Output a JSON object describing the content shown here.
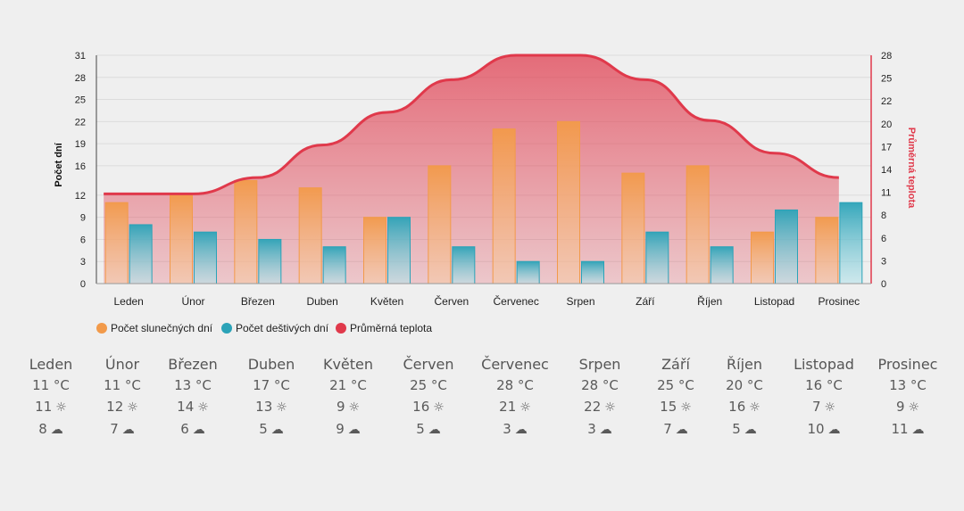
{
  "chart_data": {
    "type": "bar",
    "categories": [
      "Leden",
      "Únor",
      "Březen",
      "Duben",
      "Květen",
      "Červen",
      "Červenec",
      "Srpen",
      "Září",
      "Říjen",
      "Listopad",
      "Prosinec"
    ],
    "series": [
      {
        "name": "Počet slunečných dní",
        "type": "bar",
        "axis": "left",
        "values": [
          11,
          12,
          14,
          13,
          9,
          16,
          21,
          22,
          15,
          16,
          7,
          9
        ]
      },
      {
        "name": "Počet deštivých dní",
        "type": "bar",
        "axis": "left",
        "values": [
          8,
          7,
          6,
          5,
          9,
          5,
          3,
          3,
          7,
          5,
          10,
          11
        ]
      },
      {
        "name": "Průměrná teplota",
        "type": "area",
        "axis": "right",
        "values": [
          11,
          11,
          13,
          17,
          21,
          25,
          28,
          28,
          25,
          20,
          16,
          13
        ]
      }
    ],
    "ylabel": "Počet dní",
    "y2label": "Průměrná teplota",
    "yticks": [
      0,
      3,
      6,
      9,
      12,
      16,
      19,
      22,
      25,
      28,
      31
    ],
    "y2ticks": [
      0,
      3,
      6,
      8,
      11,
      14,
      17,
      20,
      22,
      25,
      28
    ],
    "ylim": [
      0,
      31
    ],
    "y2lim": [
      0,
      28
    ],
    "legend_position": "bottom-left",
    "colors": {
      "sunny": "#f29a4a",
      "rainy": "#2ba3b8",
      "temp": "#e0394b"
    }
  },
  "table": {
    "temp_unit": "°C",
    "sun_icon": "sun-icon",
    "rain_icon": "cloud-rain-icon",
    "rows": [
      {
        "month": "Leden",
        "temp": "11 °C",
        "sun": "11",
        "rain": "8"
      },
      {
        "month": "Únor",
        "temp": "11 °C",
        "sun": "12",
        "rain": "7"
      },
      {
        "month": "Březen",
        "temp": "13 °C",
        "sun": "14",
        "rain": "6"
      },
      {
        "month": "Duben",
        "temp": "17 °C",
        "sun": "13",
        "rain": "5"
      },
      {
        "month": "Květen",
        "temp": "21 °C",
        "sun": "9",
        "rain": "9"
      },
      {
        "month": "Červen",
        "temp": "25 °C",
        "sun": "16",
        "rain": "5"
      },
      {
        "month": "Červenec",
        "temp": "28 °C",
        "sun": "21",
        "rain": "3"
      },
      {
        "month": "Srpen",
        "temp": "28 °C",
        "sun": "22",
        "rain": "3"
      },
      {
        "month": "Září",
        "temp": "25 °C",
        "sun": "15",
        "rain": "7"
      },
      {
        "month": "Říjen",
        "temp": "20 °C",
        "sun": "16",
        "rain": "5"
      },
      {
        "month": "Listopad",
        "temp": "16 °C",
        "sun": "7",
        "rain": "10"
      },
      {
        "month": "Prosinec",
        "temp": "13 °C",
        "sun": "9",
        "rain": "11"
      }
    ]
  }
}
